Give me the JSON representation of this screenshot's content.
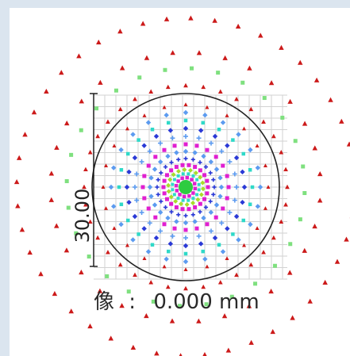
{
  "diagram": {
    "scale_label": "30.00",
    "field_caption": {
      "label": "像",
      "separator": ":",
      "value": "0.000",
      "unit": "mm"
    }
  },
  "colors": {
    "frame_bg": "#dbe5ef",
    "grid": "#d2d2d2",
    "circle": "#222222",
    "ring_outer": "#cc1a1a",
    "ring_green": "#7fe07f",
    "magenta": "#e01fd0",
    "cyan": "#2fd9c8",
    "blue": "#2a39d6",
    "lightblue": "#5c9bf0",
    "lime": "#a8dc2a",
    "green": "#2ecc40"
  },
  "icons": [
    "red-triangle-marker",
    "green-square-marker",
    "diamond-marker",
    "cross-marker"
  ]
}
